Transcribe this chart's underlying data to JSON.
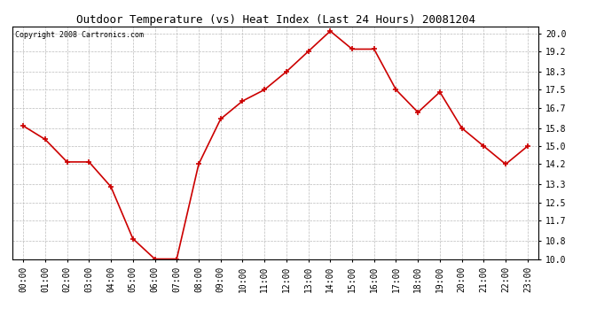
{
  "title": "Outdoor Temperature (vs) Heat Index (Last 24 Hours) 20081204",
  "copyright_text": "Copyright 2008 Cartronics.com",
  "x_labels": [
    "00:00",
    "01:00",
    "02:00",
    "03:00",
    "04:00",
    "05:00",
    "06:00",
    "07:00",
    "08:00",
    "09:00",
    "10:00",
    "11:00",
    "12:00",
    "13:00",
    "14:00",
    "15:00",
    "16:00",
    "17:00",
    "18:00",
    "19:00",
    "20:00",
    "21:00",
    "22:00",
    "23:00"
  ],
  "y_values": [
    15.9,
    15.3,
    14.3,
    14.3,
    13.2,
    10.9,
    10.0,
    10.0,
    14.2,
    16.2,
    17.0,
    17.5,
    18.3,
    19.2,
    20.1,
    19.3,
    19.3,
    17.5,
    16.5,
    17.4,
    15.8,
    15.0,
    14.2,
    15.0
  ],
  "line_color": "#cc0000",
  "marker_color": "#cc0000",
  "marker_style": "+",
  "marker_size": 5,
  "line_width": 1.2,
  "ylim": [
    10.0,
    20.3
  ],
  "yticks": [
    10.0,
    10.8,
    11.7,
    12.5,
    13.3,
    14.2,
    15.0,
    15.8,
    16.7,
    17.5,
    18.3,
    19.2,
    20.0
  ],
  "background_color": "#ffffff",
  "plot_bg_color": "#ffffff",
  "grid_color": "#bbbbbb",
  "title_fontsize": 9,
  "copyright_fontsize": 6,
  "tick_fontsize": 7,
  "marker_edge_width": 1.2
}
